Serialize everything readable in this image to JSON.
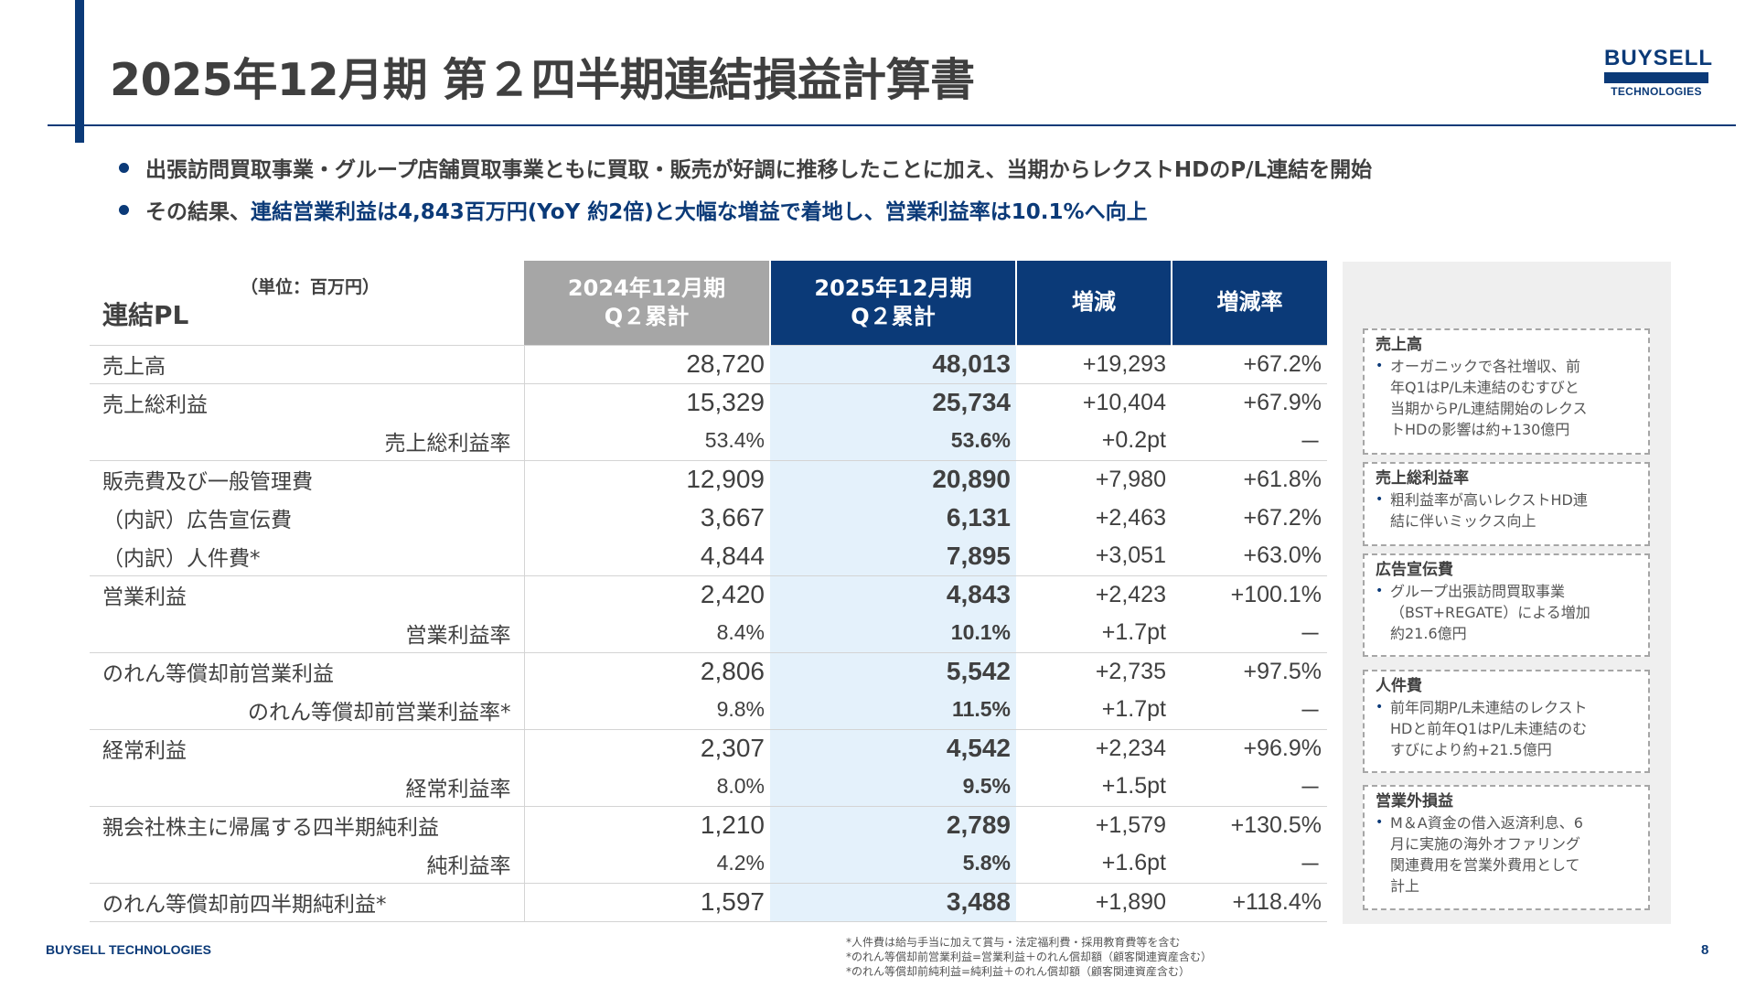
{
  "title": "2025年12月期 第２四半期連結損益計算書",
  "logo": {
    "top": "BUYSELL",
    "bottom": "TECHNOLOGIES"
  },
  "bullets": {
    "b1": "出張訪問買取事業・グループ店舗買取事業ともに買取・販売が好調に推移したことに加え、当期からレクストHDのP/L連結を開始",
    "b2_prefix": "その結果、",
    "b2_highlight": "連結営業利益は4,843百万円(YoY 約2倍)と大幅な増益で着地し、営業利益率は10.1%へ向上"
  },
  "table": {
    "unit": "（単位：百万円）",
    "title": "連結PL",
    "headers": {
      "prev_l1": "2024年12月期",
      "prev_l2": "Q２累計",
      "curr_l1": "2025年12月期",
      "curr_l2": "Q２累計",
      "diff": "増減",
      "rate": "増減率"
    },
    "rows": [
      {
        "label": "売上高",
        "prev": "28,720",
        "curr": "48,013",
        "diff": "+19,293",
        "rate": "+67.2%"
      },
      {
        "label": "売上総利益",
        "prev": "15,329",
        "curr": "25,734",
        "diff": "+10,404",
        "rate": "+67.9%"
      },
      {
        "label": "売上総利益率",
        "prev": "53.4%",
        "curr": "53.6%",
        "diff": "+0.2pt",
        "rate": "－"
      },
      {
        "label": "販売費及び一般管理費",
        "prev": "12,909",
        "curr": "20,890",
        "diff": "+7,980",
        "rate": "+61.8%"
      },
      {
        "label": "（内訳）広告宣伝費",
        "prev": "3,667",
        "curr": "6,131",
        "diff": "+2,463",
        "rate": "+67.2%"
      },
      {
        "label": "（内訳）人件費*",
        "prev": "4,844",
        "curr": "7,895",
        "diff": "+3,051",
        "rate": "+63.0%"
      },
      {
        "label": "営業利益",
        "prev": "2,420",
        "curr": "4,843",
        "diff": "+2,423",
        "rate": "+100.1%"
      },
      {
        "label": "営業利益率",
        "prev": "8.4%",
        "curr": "10.1%",
        "diff": "+1.7pt",
        "rate": "－"
      },
      {
        "label": "のれん等償却前営業利益",
        "prev": "2,806",
        "curr": "5,542",
        "diff": "+2,735",
        "rate": "+97.5%"
      },
      {
        "label": "のれん等償却前営業利益率*",
        "prev": "9.8%",
        "curr": "11.5%",
        "diff": "+1.7pt",
        "rate": "－"
      },
      {
        "label": "経常利益",
        "prev": "2,307",
        "curr": "4,542",
        "diff": "+2,234",
        "rate": "+96.9%"
      },
      {
        "label": "経常利益率",
        "prev": "8.0%",
        "curr": "9.5%",
        "diff": "+1.5pt",
        "rate": "－"
      },
      {
        "label": "親会社株主に帰属する四半期純利益",
        "prev": "1,210",
        "curr": "2,789",
        "diff": "+1,579",
        "rate": "+130.5%"
      },
      {
        "label": "純利益率",
        "prev": "4.2%",
        "curr": "5.8%",
        "diff": "+1.6pt",
        "rate": "－"
      },
      {
        "label": "のれん等償却前四半期純利益*",
        "prev": "1,597",
        "curr": "3,488",
        "diff": "+1,890",
        "rate": "+118.4%"
      }
    ]
  },
  "side": [
    {
      "title": "売上高",
      "lines": [
        "オーガニックで各社増収、前",
        "年Q1はP/L未連結のむすびと",
        "当期からP/L連結開始のレクス",
        "トHDの影響は約+130億円"
      ]
    },
    {
      "title": "売上総利益率",
      "lines": [
        "粗利益率が高いレクストHD連",
        "結に伴いミックス向上"
      ]
    },
    {
      "title": "広告宣伝費",
      "lines": [
        "グループ出張訪問買取事業",
        "（BST+REGATE）による増加",
        "約21.6億円"
      ]
    },
    {
      "title": "人件費",
      "lines": [
        "前年同期P/L未連結のレクスト",
        "HDと前年Q1はP/L未連結のむ",
        "すびにより約+21.5億円"
      ]
    },
    {
      "title": "営業外損益",
      "lines": [
        "M＆A資金の借入返済利息、6",
        "月に実施の海外オファリング",
        "関連費用を営業外費用として",
        "計上"
      ]
    }
  ],
  "footer": {
    "brand": "BUYSELL TECHNOLOGIES",
    "notes": [
      "*人件費は給与手当に加えて賞与・法定福利費・採用教育費等を含む",
      "*のれん等償却前営業利益=営業利益＋のれん償却額（顧客関連資産含む）",
      "*のれん等償却前純利益=純利益＋のれん償却額（顧客関連資産含む）"
    ],
    "page": "8"
  },
  "colors": {
    "navy": "#0b3a78",
    "gray_header": "#a6a6a6",
    "current_col": "#e4f1fb",
    "side_bg": "#efefef"
  }
}
